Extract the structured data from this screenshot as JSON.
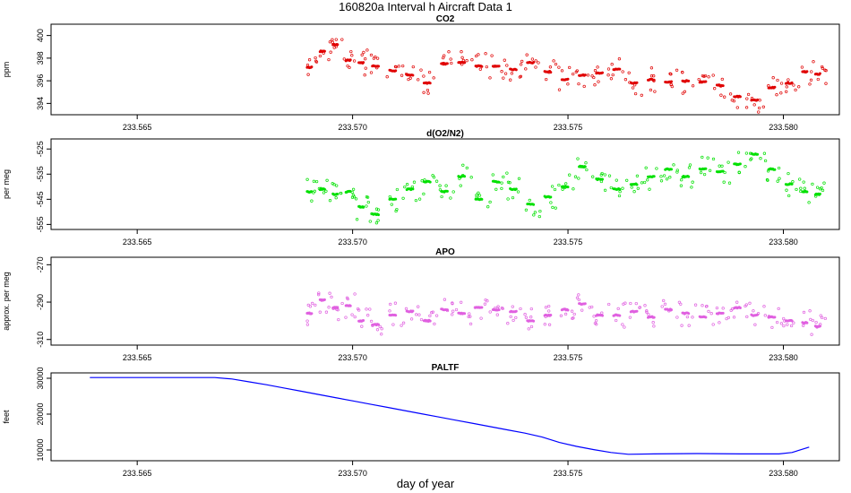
{
  "title": "160820a   Interval h Aircraft Data 1",
  "xlabel": "day of year",
  "chart_data": [
    {
      "type": "scatter",
      "title": "CO2",
      "ylabel": "ppm",
      "color": "#e00000",
      "xlim": [
        233.563,
        233.5813
      ],
      "ylim": [
        393,
        401
      ],
      "x_ticks": [
        "233.565",
        "233.570",
        "233.575",
        "233.580"
      ],
      "y_ticks": [
        "394",
        "396",
        "398",
        "400"
      ],
      "series_range_x": [
        233.5689,
        233.5807
      ],
      "x": [
        233.5689,
        233.5692,
        233.5695,
        233.5698,
        233.5701,
        233.5704,
        233.5708,
        233.5712,
        233.5716,
        233.572,
        233.5724,
        233.5728,
        233.5732,
        233.5736,
        233.574,
        233.5744,
        233.5748,
        233.5752,
        233.5756,
        233.576,
        233.5764,
        233.5768,
        233.5772,
        233.5776,
        233.578,
        233.5784,
        233.5788,
        233.5792,
        233.5796,
        233.58,
        233.5804,
        233.5807
      ],
      "y": [
        397.2,
        398.6,
        399.2,
        397.8,
        397.6,
        397.3,
        396.9,
        396.5,
        395.8,
        397.5,
        397.6,
        397.3,
        397.3,
        397.0,
        397.6,
        396.8,
        396.1,
        396.5,
        396.7,
        397.0,
        395.8,
        396.1,
        395.9,
        396.0,
        395.9,
        395.6,
        394.6,
        394.3,
        395.4,
        395.8,
        396.8,
        396.6
      ]
    },
    {
      "type": "scatter",
      "title": "d(O2/N2)",
      "ylabel": "per meg",
      "color": "#00e000",
      "xlim": [
        233.563,
        233.5813
      ],
      "ylim": [
        -557,
        -521
      ],
      "x_ticks": [
        "233.565",
        "233.570",
        "233.575",
        "233.580"
      ],
      "y_ticks": [
        "-525",
        "-535",
        "-545",
        "-555"
      ],
      "x": [
        233.5689,
        233.5692,
        233.5695,
        233.5698,
        233.5701,
        233.5704,
        233.5708,
        233.5712,
        233.5716,
        233.572,
        233.5724,
        233.5728,
        233.5732,
        233.5736,
        233.574,
        233.5744,
        233.5748,
        233.5752,
        233.5756,
        233.576,
        233.5764,
        233.5768,
        233.5772,
        233.5776,
        233.578,
        233.5784,
        233.5788,
        233.5792,
        233.5796,
        233.58,
        233.5804,
        233.5807
      ],
      "y": [
        -542,
        -541,
        -543,
        -542,
        -548,
        -551,
        -545,
        -541,
        -538,
        -542,
        -536,
        -545,
        -538,
        -541,
        -547,
        -544,
        -540,
        -532,
        -537,
        -541,
        -539,
        -536,
        -533,
        -536,
        -533,
        -534,
        -531,
        -527,
        -533,
        -539,
        -542,
        -543
      ]
    },
    {
      "type": "scatter",
      "title": "APO",
      "ylabel": "approx. per meg",
      "color": "#e060e0",
      "xlim": [
        233.563,
        233.5813
      ],
      "ylim": [
        -313,
        -266
      ],
      "x_ticks": [
        "233.565",
        "233.570",
        "233.575",
        "233.580"
      ],
      "y_ticks": [
        "-270",
        "-290",
        "-310"
      ],
      "x": [
        233.5689,
        233.5692,
        233.5695,
        233.5698,
        233.5701,
        233.5704,
        233.5708,
        233.5712,
        233.5716,
        233.572,
        233.5724,
        233.5728,
        233.5732,
        233.5736,
        233.574,
        233.5744,
        233.5748,
        233.5752,
        233.5756,
        233.576,
        233.5764,
        233.5768,
        233.5772,
        233.5776,
        233.578,
        233.5784,
        233.5788,
        233.5792,
        233.5796,
        233.58,
        233.5804,
        233.5807
      ],
      "y": [
        -296,
        -289,
        -293,
        -292,
        -300,
        -302,
        -297,
        -295,
        -300,
        -294,
        -296,
        -293,
        -294,
        -295,
        -300,
        -297,
        -294,
        -291,
        -297,
        -297,
        -295,
        -298,
        -294,
        -296,
        -298,
        -296,
        -293,
        -297,
        -298,
        -300,
        -301,
        -303
      ]
    },
    {
      "type": "line",
      "title": "PALTF",
      "ylabel": "feet",
      "color": "#0000ff",
      "xlim": [
        233.563,
        233.5813
      ],
      "ylim": [
        7000,
        31500
      ],
      "x_ticks": [
        "233.565",
        "233.570",
        "233.575",
        "233.580"
      ],
      "y_ticks": [
        "10000",
        "20000",
        "30000"
      ],
      "x": [
        233.5639,
        233.5668,
        233.5672,
        233.5676,
        233.568,
        233.5684,
        233.5688,
        233.5692,
        233.5696,
        233.57,
        233.5704,
        233.5708,
        233.5712,
        233.5716,
        233.572,
        233.5724,
        233.5728,
        233.5732,
        233.5736,
        233.574,
        233.5744,
        233.5748,
        233.5752,
        233.5756,
        233.576,
        233.5764,
        233.577,
        233.578,
        233.579,
        233.5799,
        233.5802,
        233.5806
      ],
      "y": [
        30200,
        30200,
        29800,
        29000,
        28200,
        27300,
        26400,
        25500,
        24600,
        23700,
        22800,
        21900,
        21000,
        20100,
        19200,
        18300,
        17400,
        16500,
        15600,
        14700,
        13600,
        12100,
        11000,
        10100,
        9300,
        8800,
        8900,
        9000,
        8900,
        8900,
        9300,
        10800
      ]
    }
  ]
}
